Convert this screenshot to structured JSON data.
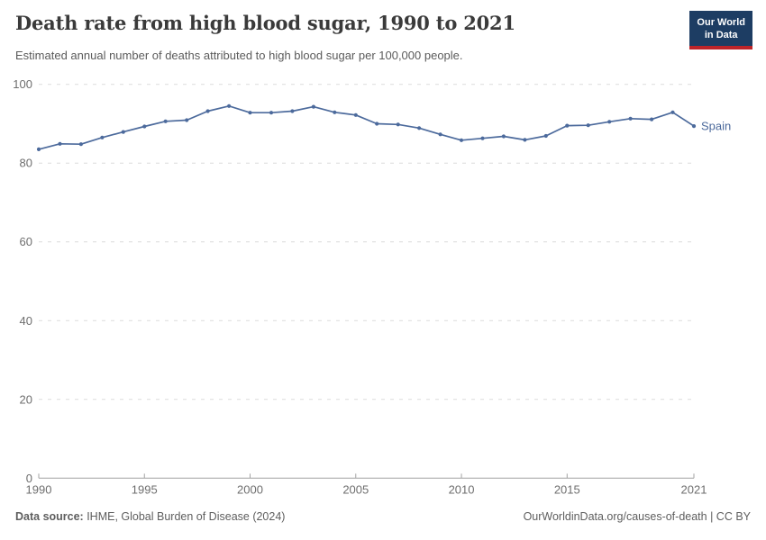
{
  "header": {
    "title": "Death rate from high blood sugar, 1990 to 2021",
    "subtitle": "Estimated annual number of deaths attributed to high blood sugar per 100,000 people.",
    "logo": {
      "line1": "Our World",
      "line2": "in Data"
    }
  },
  "chart_data": {
    "type": "line",
    "title": "Death rate from high blood sugar, 1990 to 2021",
    "xlabel": "",
    "ylabel": "",
    "xlim": [
      1990,
      2021
    ],
    "ylim": [
      0,
      100
    ],
    "x_ticks": [
      1990,
      1995,
      2000,
      2005,
      2010,
      2015,
      2021
    ],
    "y_ticks": [
      0,
      20,
      40,
      60,
      80,
      100
    ],
    "grid": "horizontal-dashed",
    "legend_position": "end-of-line-label",
    "series": [
      {
        "name": "Spain",
        "color": "#4c6a9c",
        "x": [
          1990,
          1991,
          1992,
          1993,
          1994,
          1995,
          1996,
          1997,
          1998,
          1999,
          2000,
          2001,
          2002,
          2003,
          2004,
          2005,
          2006,
          2007,
          2008,
          2009,
          2010,
          2011,
          2012,
          2013,
          2014,
          2015,
          2016,
          2017,
          2018,
          2019,
          2020,
          2021
        ],
        "values": [
          83.5,
          84.9,
          84.8,
          86.5,
          87.9,
          89.3,
          90.6,
          90.9,
          93.2,
          94.5,
          92.8,
          92.8,
          93.2,
          94.3,
          92.9,
          92.2,
          90.0,
          89.8,
          88.9,
          87.3,
          85.8,
          86.3,
          86.8,
          85.9,
          86.9,
          89.5,
          89.6,
          90.5,
          91.3,
          91.1,
          92.9,
          89.4
        ]
      }
    ]
  },
  "footer": {
    "source_label": "Data source:",
    "source_text": " IHME, Global Burden of Disease (2024)",
    "right_text": "OurWorldinData.org/causes-of-death | CC BY"
  },
  "colors": {
    "line": "#4c6a9c",
    "grid": "#dcdcdc",
    "axis": "#a3a3a3",
    "axis_text": "#6e6e6e",
    "logo_bg": "#1d3d63",
    "logo_stripe": "#bd2429"
  }
}
